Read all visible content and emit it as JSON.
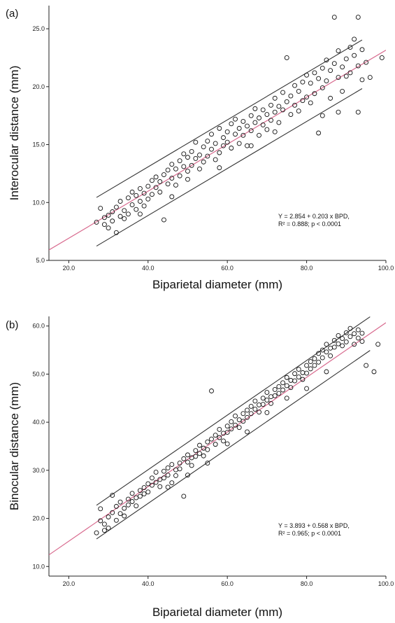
{
  "chart_data": [
    {
      "type": "scatter",
      "panel_label": "(a)",
      "xlabel": "Biparietal diameter (mm)",
      "ylabel": "Interocular distance (mm)",
      "xlim": [
        15,
        100
      ],
      "ylim": [
        5,
        27
      ],
      "x_ticks": [
        "20.0",
        "40.0",
        "60.0",
        "80.0",
        "100.0"
      ],
      "y_ticks": [
        "5.0",
        "10.0",
        "15.0",
        "20.0",
        "25.0"
      ],
      "x_tick_values": [
        20,
        40,
        60,
        80,
        100
      ],
      "y_tick_values": [
        5,
        10,
        15,
        20,
        25
      ],
      "regression": {
        "intercept": 2.854,
        "slope": 0.203,
        "color": "#d86a8e"
      },
      "prediction_band": {
        "offset": 2.1,
        "x_range": [
          27,
          94
        ],
        "color": "#333333"
      },
      "annotation": [
        "Y = 2.854 + 0.203 x BPD,",
        "R² = 0.888; p < 0.0001"
      ],
      "points": [
        [
          27,
          8.3
        ],
        [
          28,
          9.5
        ],
        [
          29,
          8.1
        ],
        [
          29,
          8.7
        ],
        [
          30,
          7.8
        ],
        [
          30,
          8.9
        ],
        [
          31,
          8.4
        ],
        [
          31,
          9.2
        ],
        [
          32,
          7.4
        ],
        [
          32,
          9.6
        ],
        [
          33,
          8.8
        ],
        [
          33,
          10.1
        ],
        [
          34,
          9.3
        ],
        [
          34,
          8.6
        ],
        [
          35,
          10.4
        ],
        [
          35,
          9.0
        ],
        [
          36,
          9.8
        ],
        [
          36,
          10.9
        ],
        [
          37,
          9.4
        ],
        [
          37,
          10.6
        ],
        [
          38,
          10.1
        ],
        [
          38,
          11.2
        ],
        [
          39,
          9.7
        ],
        [
          39,
          10.8
        ],
        [
          40,
          11.4
        ],
        [
          40,
          10.3
        ],
        [
          41,
          11.9
        ],
        [
          41,
          10.7
        ],
        [
          42,
          11.3
        ],
        [
          42,
          12.2
        ],
        [
          43,
          10.9
        ],
        [
          43,
          11.8
        ],
        [
          44,
          12.4
        ],
        [
          44,
          8.5
        ],
        [
          45,
          11.6
        ],
        [
          45,
          12.8
        ],
        [
          46,
          12.1
        ],
        [
          46,
          13.3
        ],
        [
          47,
          11.5
        ],
        [
          47,
          12.9
        ],
        [
          48,
          13.6
        ],
        [
          48,
          12.3
        ],
        [
          49,
          13.1
        ],
        [
          49,
          14.2
        ],
        [
          50,
          12.7
        ],
        [
          50,
          13.9
        ],
        [
          51,
          14.4
        ],
        [
          51,
          13.2
        ],
        [
          52,
          15.2
        ],
        [
          52,
          13.8
        ],
        [
          53,
          14.1
        ],
        [
          53,
          12.9
        ],
        [
          54,
          14.8
        ],
        [
          54,
          13.5
        ],
        [
          55,
          15.3
        ],
        [
          55,
          14.0
        ],
        [
          56,
          14.6
        ],
        [
          56,
          15.9
        ],
        [
          57,
          13.7
        ],
        [
          57,
          15.1
        ],
        [
          58,
          16.4
        ],
        [
          58,
          14.3
        ],
        [
          59,
          15.6
        ],
        [
          59,
          14.9
        ],
        [
          60,
          16.1
        ],
        [
          60,
          15.2
        ],
        [
          61,
          16.8
        ],
        [
          61,
          14.7
        ],
        [
          62,
          15.9
        ],
        [
          62,
          17.2
        ],
        [
          63,
          16.4
        ],
        [
          63,
          15.1
        ],
        [
          64,
          17.0
        ],
        [
          64,
          15.8
        ],
        [
          65,
          16.6
        ],
        [
          65,
          14.9
        ],
        [
          66,
          17.5
        ],
        [
          66,
          16.2
        ],
        [
          67,
          16.9
        ],
        [
          67,
          18.1
        ],
        [
          68,
          17.3
        ],
        [
          68,
          15.8
        ],
        [
          69,
          18.0
        ],
        [
          69,
          16.7
        ],
        [
          70,
          17.6
        ],
        [
          70,
          16.3
        ],
        [
          71,
          18.4
        ],
        [
          71,
          17.1
        ],
        [
          72,
          19.0
        ],
        [
          72,
          17.8
        ],
        [
          73,
          18.3
        ],
        [
          73,
          16.9
        ],
        [
          74,
          19.5
        ],
        [
          74,
          18.0
        ],
        [
          75,
          22.5
        ],
        [
          75,
          18.7
        ],
        [
          76,
          19.2
        ],
        [
          76,
          17.6
        ],
        [
          77,
          20.1
        ],
        [
          77,
          18.4
        ],
        [
          78,
          19.6
        ],
        [
          78,
          17.9
        ],
        [
          79,
          20.4
        ],
        [
          79,
          18.8
        ],
        [
          80,
          19.1
        ],
        [
          80,
          21.0
        ],
        [
          81,
          20.3
        ],
        [
          81,
          18.6
        ],
        [
          82,
          21.2
        ],
        [
          82,
          19.4
        ],
        [
          83,
          20.7
        ],
        [
          83,
          16.0
        ],
        [
          84,
          21.6
        ],
        [
          84,
          19.9
        ],
        [
          85,
          22.3
        ],
        [
          85,
          20.5
        ],
        [
          86,
          21.4
        ],
        [
          86,
          19.0
        ],
        [
          87,
          26.0
        ],
        [
          87,
          22.0
        ],
        [
          88,
          20.8
        ],
        [
          88,
          23.1
        ],
        [
          89,
          21.7
        ],
        [
          89,
          19.6
        ],
        [
          90,
          22.4
        ],
        [
          90,
          20.9
        ],
        [
          91,
          23.4
        ],
        [
          91,
          21.2
        ],
        [
          92,
          22.7
        ],
        [
          92,
          24.1
        ],
        [
          93,
          26.0
        ],
        [
          93,
          21.8
        ],
        [
          94,
          20.6
        ],
        [
          94,
          23.2
        ],
        [
          95,
          22.1
        ],
        [
          96,
          20.8
        ],
        [
          99,
          22.5
        ],
        [
          84,
          17.5
        ],
        [
          88,
          17.8
        ],
        [
          93,
          17.8
        ],
        [
          72,
          16.1
        ],
        [
          66,
          14.9
        ],
        [
          58,
          13.0
        ],
        [
          50,
          12.0
        ],
        [
          46,
          10.5
        ],
        [
          38,
          9.0
        ]
      ]
    },
    {
      "type": "scatter",
      "panel_label": "(b)",
      "xlabel": "Biparietal diameter (mm)",
      "ylabel": "Binocular distance (mm)",
      "xlim": [
        15,
        100
      ],
      "ylim": [
        8,
        62
      ],
      "x_ticks": [
        "20.0",
        "40.0",
        "60.0",
        "80.0",
        "100.0"
      ],
      "y_ticks": [
        "10.0",
        "20.0",
        "30.0",
        "40.0",
        "50.0",
        "60.0"
      ],
      "x_tick_values": [
        20,
        40,
        60,
        80,
        100
      ],
      "y_tick_values": [
        10,
        20,
        30,
        40,
        50,
        60
      ],
      "regression": {
        "intercept": 3.893,
        "slope": 0.568,
        "color": "#d86a8e"
      },
      "prediction_band": {
        "offset": 3.5,
        "x_range": [
          27,
          96
        ],
        "color": "#333333"
      },
      "annotation": [
        "Y = 3.893 + 0.568 x BPD,",
        "R² = 0.965; p < 0.0001"
      ],
      "points": [
        [
          27,
          17.0
        ],
        [
          28,
          19.5
        ],
        [
          28,
          22.0
        ],
        [
          29,
          17.5
        ],
        [
          29,
          18.8
        ],
        [
          30,
          20.3
        ],
        [
          30,
          18.0
        ],
        [
          31,
          21.2
        ],
        [
          31,
          24.8
        ],
        [
          32,
          19.6
        ],
        [
          32,
          22.5
        ],
        [
          33,
          21.0
        ],
        [
          33,
          23.4
        ],
        [
          34,
          22.1
        ],
        [
          34,
          20.5
        ],
        [
          35,
          24.0
        ],
        [
          35,
          22.8
        ],
        [
          36,
          23.5
        ],
        [
          36,
          25.2
        ],
        [
          37,
          24.3
        ],
        [
          37,
          22.6
        ],
        [
          38,
          25.8
        ],
        [
          38,
          24.6
        ],
        [
          39,
          26.4
        ],
        [
          39,
          25.1
        ],
        [
          40,
          27.2
        ],
        [
          40,
          25.5
        ],
        [
          41,
          26.9
        ],
        [
          41,
          28.4
        ],
        [
          42,
          27.5
        ],
        [
          42,
          29.6
        ],
        [
          43,
          28.1
        ],
        [
          43,
          26.6
        ],
        [
          44,
          29.8
        ],
        [
          44,
          28.4
        ],
        [
          45,
          30.5
        ],
        [
          45,
          29.0
        ],
        [
          46,
          27.4
        ],
        [
          46,
          31.2
        ],
        [
          47,
          30.1
        ],
        [
          47,
          28.9
        ],
        [
          48,
          31.5
        ],
        [
          48,
          30.3
        ],
        [
          49,
          32.4
        ],
        [
          49,
          24.6
        ],
        [
          50,
          31.7
        ],
        [
          50,
          33.2
        ],
        [
          51,
          32.6
        ],
        [
          51,
          31.0
        ],
        [
          52,
          34.1
        ],
        [
          52,
          32.9
        ],
        [
          53,
          33.5
        ],
        [
          53,
          35.2
        ],
        [
          54,
          34.6
        ],
        [
          54,
          33.0
        ],
        [
          55,
          35.9
        ],
        [
          55,
          34.3
        ],
        [
          56,
          36.5
        ],
        [
          56,
          46.5
        ],
        [
          57,
          35.4
        ],
        [
          57,
          37.3
        ],
        [
          58,
          36.8
        ],
        [
          58,
          38.5
        ],
        [
          59,
          37.7
        ],
        [
          59,
          36.1
        ],
        [
          60,
          39.2
        ],
        [
          60,
          37.9
        ],
        [
          61,
          38.6
        ],
        [
          61,
          40.1
        ],
        [
          62,
          39.4
        ],
        [
          62,
          41.3
        ],
        [
          63,
          40.5
        ],
        [
          63,
          38.9
        ],
        [
          64,
          41.8
        ],
        [
          64,
          40.2
        ],
        [
          65,
          42.5
        ],
        [
          65,
          41.0
        ],
        [
          66,
          43.3
        ],
        [
          66,
          41.8
        ],
        [
          67,
          42.7
        ],
        [
          67,
          44.4
        ],
        [
          68,
          43.6
        ],
        [
          68,
          42.1
        ],
        [
          69,
          45.0
        ],
        [
          69,
          43.7
        ],
        [
          70,
          44.6
        ],
        [
          70,
          46.2
        ],
        [
          71,
          45.3
        ],
        [
          71,
          43.9
        ],
        [
          72,
          46.8
        ],
        [
          72,
          45.5
        ],
        [
          73,
          47.4
        ],
        [
          73,
          46.0
        ],
        [
          74,
          48.2
        ],
        [
          74,
          46.7
        ],
        [
          75,
          47.6
        ],
        [
          75,
          49.3
        ],
        [
          76,
          48.7
        ],
        [
          76,
          47.2
        ],
        [
          77,
          50.1
        ],
        [
          77,
          48.6
        ],
        [
          78,
          49.4
        ],
        [
          78,
          51.0
        ],
        [
          79,
          50.3
        ],
        [
          79,
          48.9
        ],
        [
          80,
          51.8
        ],
        [
          80,
          50.2
        ],
        [
          81,
          52.6
        ],
        [
          81,
          51.1
        ],
        [
          82,
          53.2
        ],
        [
          82,
          51.8
        ],
        [
          83,
          52.5
        ],
        [
          83,
          54.3
        ],
        [
          84,
          55.0
        ],
        [
          84,
          53.4
        ],
        [
          85,
          54.6
        ],
        [
          85,
          56.2
        ],
        [
          86,
          55.4
        ],
        [
          86,
          53.8
        ],
        [
          87,
          57.0
        ],
        [
          87,
          55.6
        ],
        [
          88,
          56.3
        ],
        [
          88,
          58.0
        ],
        [
          89,
          57.4
        ],
        [
          89,
          55.9
        ],
        [
          90,
          58.6
        ],
        [
          90,
          56.7
        ],
        [
          91,
          57.8
        ],
        [
          91,
          59.5
        ],
        [
          92,
          58.4
        ],
        [
          92,
          56.2
        ],
        [
          93,
          59.2
        ],
        [
          93,
          57.5
        ],
        [
          94,
          58.5
        ],
        [
          94,
          56.8
        ],
        [
          95,
          51.8
        ],
        [
          97,
          50.5
        ],
        [
          98,
          56.2
        ],
        [
          85,
          50.5
        ],
        [
          80,
          47.0
        ],
        [
          75,
          45.0
        ],
        [
          70,
          42.0
        ],
        [
          65,
          38.0
        ],
        [
          60,
          35.5
        ],
        [
          55,
          31.5
        ],
        [
          50,
          29.0
        ],
        [
          45,
          26.5
        ]
      ]
    }
  ]
}
